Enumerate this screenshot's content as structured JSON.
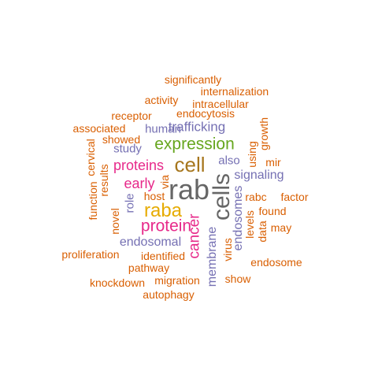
{
  "colors": {
    "orange": "#d95f02",
    "purple": "#7570b3",
    "green": "#66a61e",
    "pink": "#e7298a",
    "gold": "#e6ab02",
    "brown": "#a6761d",
    "gray": "#666666"
  },
  "words": [
    {
      "text": "rab",
      "color": "gray",
      "weight": 1.0
    },
    {
      "text": "cells",
      "color": "gray",
      "weight": 0.8
    },
    {
      "text": "cell",
      "color": "brown",
      "weight": 0.6
    },
    {
      "text": "raba",
      "color": "gold",
      "weight": 0.55
    },
    {
      "text": "expression",
      "color": "green",
      "weight": 0.5
    },
    {
      "text": "protein",
      "color": "pink",
      "weight": 0.5
    },
    {
      "text": "cancer",
      "color": "pink",
      "weight": 0.45
    },
    {
      "text": "proteins",
      "color": "pink",
      "weight": 0.4
    },
    {
      "text": "early",
      "color": "pink",
      "weight": 0.4
    },
    {
      "text": "trafficking",
      "color": "purple",
      "weight": 0.3
    },
    {
      "text": "endosomal",
      "color": "purple",
      "weight": 0.3
    },
    {
      "text": "membrane",
      "color": "purple",
      "weight": 0.3
    },
    {
      "text": "signaling",
      "color": "purple",
      "weight": 0.3
    },
    {
      "text": "endosomes",
      "color": "purple",
      "weight": 0.3
    },
    {
      "text": "human",
      "color": "purple",
      "weight": 0.3
    },
    {
      "text": "study",
      "color": "purple",
      "weight": 0.25
    },
    {
      "text": "role",
      "color": "purple",
      "weight": 0.25
    },
    {
      "text": "also",
      "color": "purple",
      "weight": 0.25
    },
    {
      "text": "significantly",
      "color": "orange",
      "weight": 0.2
    },
    {
      "text": "internalization",
      "color": "orange",
      "weight": 0.2
    },
    {
      "text": "activity",
      "color": "orange",
      "weight": 0.2
    },
    {
      "text": "intracellular",
      "color": "orange",
      "weight": 0.2
    },
    {
      "text": "endocytosis",
      "color": "orange",
      "weight": 0.2
    },
    {
      "text": "receptor",
      "color": "orange",
      "weight": 0.2
    },
    {
      "text": "associated",
      "color": "orange",
      "weight": 0.2
    },
    {
      "text": "growth",
      "color": "orange",
      "weight": 0.2
    },
    {
      "text": "showed",
      "color": "orange",
      "weight": 0.2
    },
    {
      "text": "cervical",
      "color": "orange",
      "weight": 0.2
    },
    {
      "text": "using",
      "color": "orange",
      "weight": 0.2
    },
    {
      "text": "mir",
      "color": "orange",
      "weight": 0.2
    },
    {
      "text": "results",
      "color": "orange",
      "weight": 0.2
    },
    {
      "text": "function",
      "color": "orange",
      "weight": 0.2
    },
    {
      "text": "via",
      "color": "orange",
      "weight": 0.2
    },
    {
      "text": "host",
      "color": "orange",
      "weight": 0.2
    },
    {
      "text": "rabc",
      "color": "orange",
      "weight": 0.2
    },
    {
      "text": "factor",
      "color": "orange",
      "weight": 0.2
    },
    {
      "text": "novel",
      "color": "orange",
      "weight": 0.2
    },
    {
      "text": "found",
      "color": "orange",
      "weight": 0.2
    },
    {
      "text": "levels",
      "color": "orange",
      "weight": 0.2
    },
    {
      "text": "data",
      "color": "orange",
      "weight": 0.2
    },
    {
      "text": "may",
      "color": "orange",
      "weight": 0.2
    },
    {
      "text": "proliferation",
      "color": "orange",
      "weight": 0.2
    },
    {
      "text": "identified",
      "color": "orange",
      "weight": 0.2
    },
    {
      "text": "virus",
      "color": "orange",
      "weight": 0.2
    },
    {
      "text": "endosome",
      "color": "orange",
      "weight": 0.2
    },
    {
      "text": "pathway",
      "color": "orange",
      "weight": 0.2
    },
    {
      "text": "knockdown",
      "color": "orange",
      "weight": 0.2
    },
    {
      "text": "migration",
      "color": "orange",
      "weight": 0.2
    },
    {
      "text": "show",
      "color": "orange",
      "weight": 0.2
    },
    {
      "text": "autophagy",
      "color": "orange",
      "weight": 0.2
    }
  ]
}
